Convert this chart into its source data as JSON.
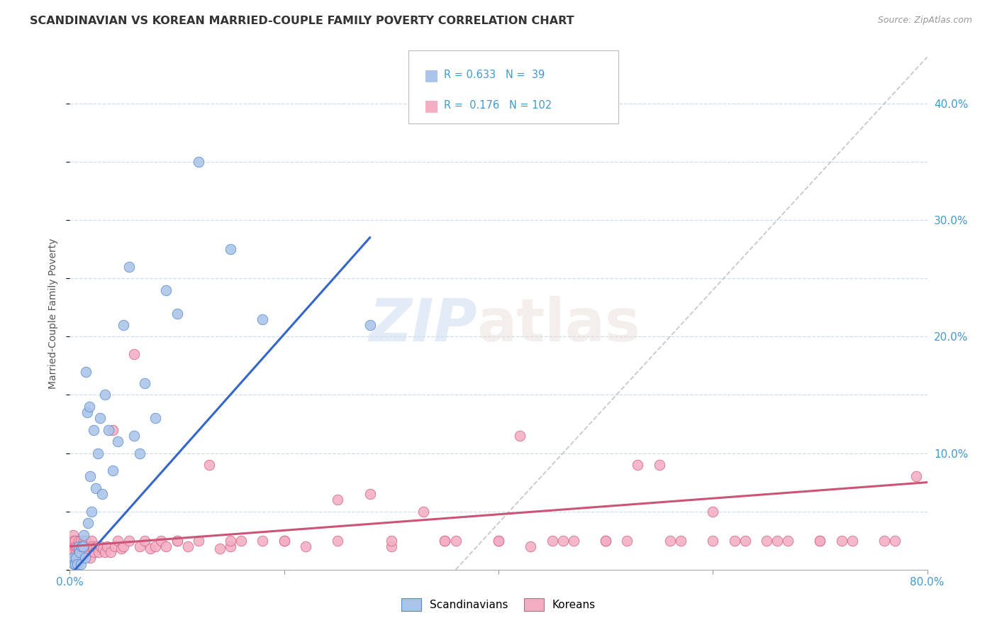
{
  "title": "SCANDINAVIAN VS KOREAN MARRIED-COUPLE FAMILY POVERTY CORRELATION CHART",
  "source": "Source: ZipAtlas.com",
  "ylabel": "Married-Couple Family Poverty",
  "xlim": [
    0.0,
    0.8
  ],
  "ylim": [
    0.0,
    0.44
  ],
  "yticks": [
    0.0,
    0.1,
    0.2,
    0.3,
    0.4
  ],
  "ytick_labels_right": [
    "",
    "10.0%",
    "20.0%",
    "30.0%",
    "40.0%"
  ],
  "xticks": [
    0.0,
    0.2,
    0.4,
    0.6,
    0.8
  ],
  "xtick_labels": [
    "0.0%",
    "",
    "",
    "",
    "80.0%"
  ],
  "scand_color": "#aac4ea",
  "scand_edge": "#5588cc",
  "korean_color": "#f4aec4",
  "korean_edge": "#d06080",
  "line_scand": "#3366cc",
  "line_korean": "#cc5577",
  "diag_color": "#bbbbbb",
  "grid_color": "#ccddee",
  "bg_color": "#ffffff",
  "tick_color": "#4499cc",
  "scand_x": [
    0.003,
    0.004,
    0.005,
    0.006,
    0.007,
    0.008,
    0.009,
    0.01,
    0.011,
    0.012,
    0.013,
    0.014,
    0.015,
    0.016,
    0.017,
    0.018,
    0.019,
    0.02,
    0.022,
    0.024,
    0.026,
    0.028,
    0.03,
    0.033,
    0.036,
    0.04,
    0.045,
    0.05,
    0.055,
    0.06,
    0.065,
    0.07,
    0.08,
    0.09,
    0.1,
    0.12,
    0.15,
    0.18,
    0.28
  ],
  "scand_y": [
    0.01,
    0.005,
    0.005,
    0.01,
    0.005,
    0.02,
    0.015,
    0.005,
    0.02,
    0.02,
    0.03,
    0.01,
    0.17,
    0.135,
    0.04,
    0.14,
    0.08,
    0.05,
    0.12,
    0.07,
    0.1,
    0.13,
    0.065,
    0.15,
    0.12,
    0.085,
    0.11,
    0.21,
    0.26,
    0.115,
    0.1,
    0.16,
    0.13,
    0.24,
    0.22,
    0.35,
    0.275,
    0.215,
    0.21
  ],
  "korean_x": [
    0.001,
    0.001,
    0.002,
    0.002,
    0.003,
    0.003,
    0.004,
    0.004,
    0.005,
    0.005,
    0.006,
    0.006,
    0.007,
    0.007,
    0.008,
    0.008,
    0.009,
    0.01,
    0.01,
    0.011,
    0.012,
    0.013,
    0.014,
    0.015,
    0.016,
    0.017,
    0.018,
    0.019,
    0.02,
    0.021,
    0.022,
    0.023,
    0.025,
    0.027,
    0.029,
    0.031,
    0.033,
    0.035,
    0.038,
    0.04,
    0.042,
    0.045,
    0.048,
    0.05,
    0.055,
    0.06,
    0.065,
    0.07,
    0.075,
    0.08,
    0.085,
    0.09,
    0.1,
    0.11,
    0.12,
    0.13,
    0.14,
    0.15,
    0.16,
    0.18,
    0.2,
    0.22,
    0.25,
    0.28,
    0.3,
    0.33,
    0.36,
    0.4,
    0.43,
    0.46,
    0.5,
    0.53,
    0.56,
    0.6,
    0.63,
    0.66,
    0.7,
    0.73,
    0.76,
    0.79,
    0.35,
    0.4,
    0.45,
    0.5,
    0.55,
    0.6,
    0.65,
    0.7,
    0.42,
    0.47,
    0.52,
    0.57,
    0.62,
    0.67,
    0.72,
    0.77,
    0.25,
    0.3,
    0.35,
    0.2,
    0.15,
    0.1
  ],
  "korean_y": [
    0.01,
    0.02,
    0.015,
    0.025,
    0.02,
    0.03,
    0.015,
    0.025,
    0.01,
    0.025,
    0.015,
    0.02,
    0.01,
    0.02,
    0.015,
    0.025,
    0.02,
    0.02,
    0.025,
    0.015,
    0.02,
    0.025,
    0.015,
    0.025,
    0.02,
    0.015,
    0.02,
    0.01,
    0.025,
    0.02,
    0.018,
    0.015,
    0.02,
    0.015,
    0.02,
    0.018,
    0.015,
    0.02,
    0.015,
    0.12,
    0.02,
    0.025,
    0.018,
    0.02,
    0.025,
    0.185,
    0.02,
    0.025,
    0.018,
    0.02,
    0.025,
    0.02,
    0.025,
    0.02,
    0.025,
    0.09,
    0.018,
    0.02,
    0.025,
    0.025,
    0.025,
    0.02,
    0.06,
    0.065,
    0.02,
    0.05,
    0.025,
    0.025,
    0.02,
    0.025,
    0.025,
    0.09,
    0.025,
    0.05,
    0.025,
    0.025,
    0.025,
    0.025,
    0.025,
    0.08,
    0.025,
    0.025,
    0.025,
    0.025,
    0.09,
    0.025,
    0.025,
    0.025,
    0.115,
    0.025,
    0.025,
    0.025,
    0.025,
    0.025,
    0.025,
    0.025,
    0.025,
    0.025,
    0.025,
    0.025,
    0.025,
    0.025
  ],
  "scand_line_x0": 0.0,
  "scand_line_y0": -0.005,
  "scand_line_x1": 0.28,
  "scand_line_y1": 0.285,
  "korean_line_x0": 0.0,
  "korean_line_y0": 0.02,
  "korean_line_x1": 0.8,
  "korean_line_y1": 0.075,
  "diag_line_x0": 0.36,
  "diag_line_y0": 0.0,
  "diag_line_x1": 0.8,
  "diag_line_y1": 0.44
}
